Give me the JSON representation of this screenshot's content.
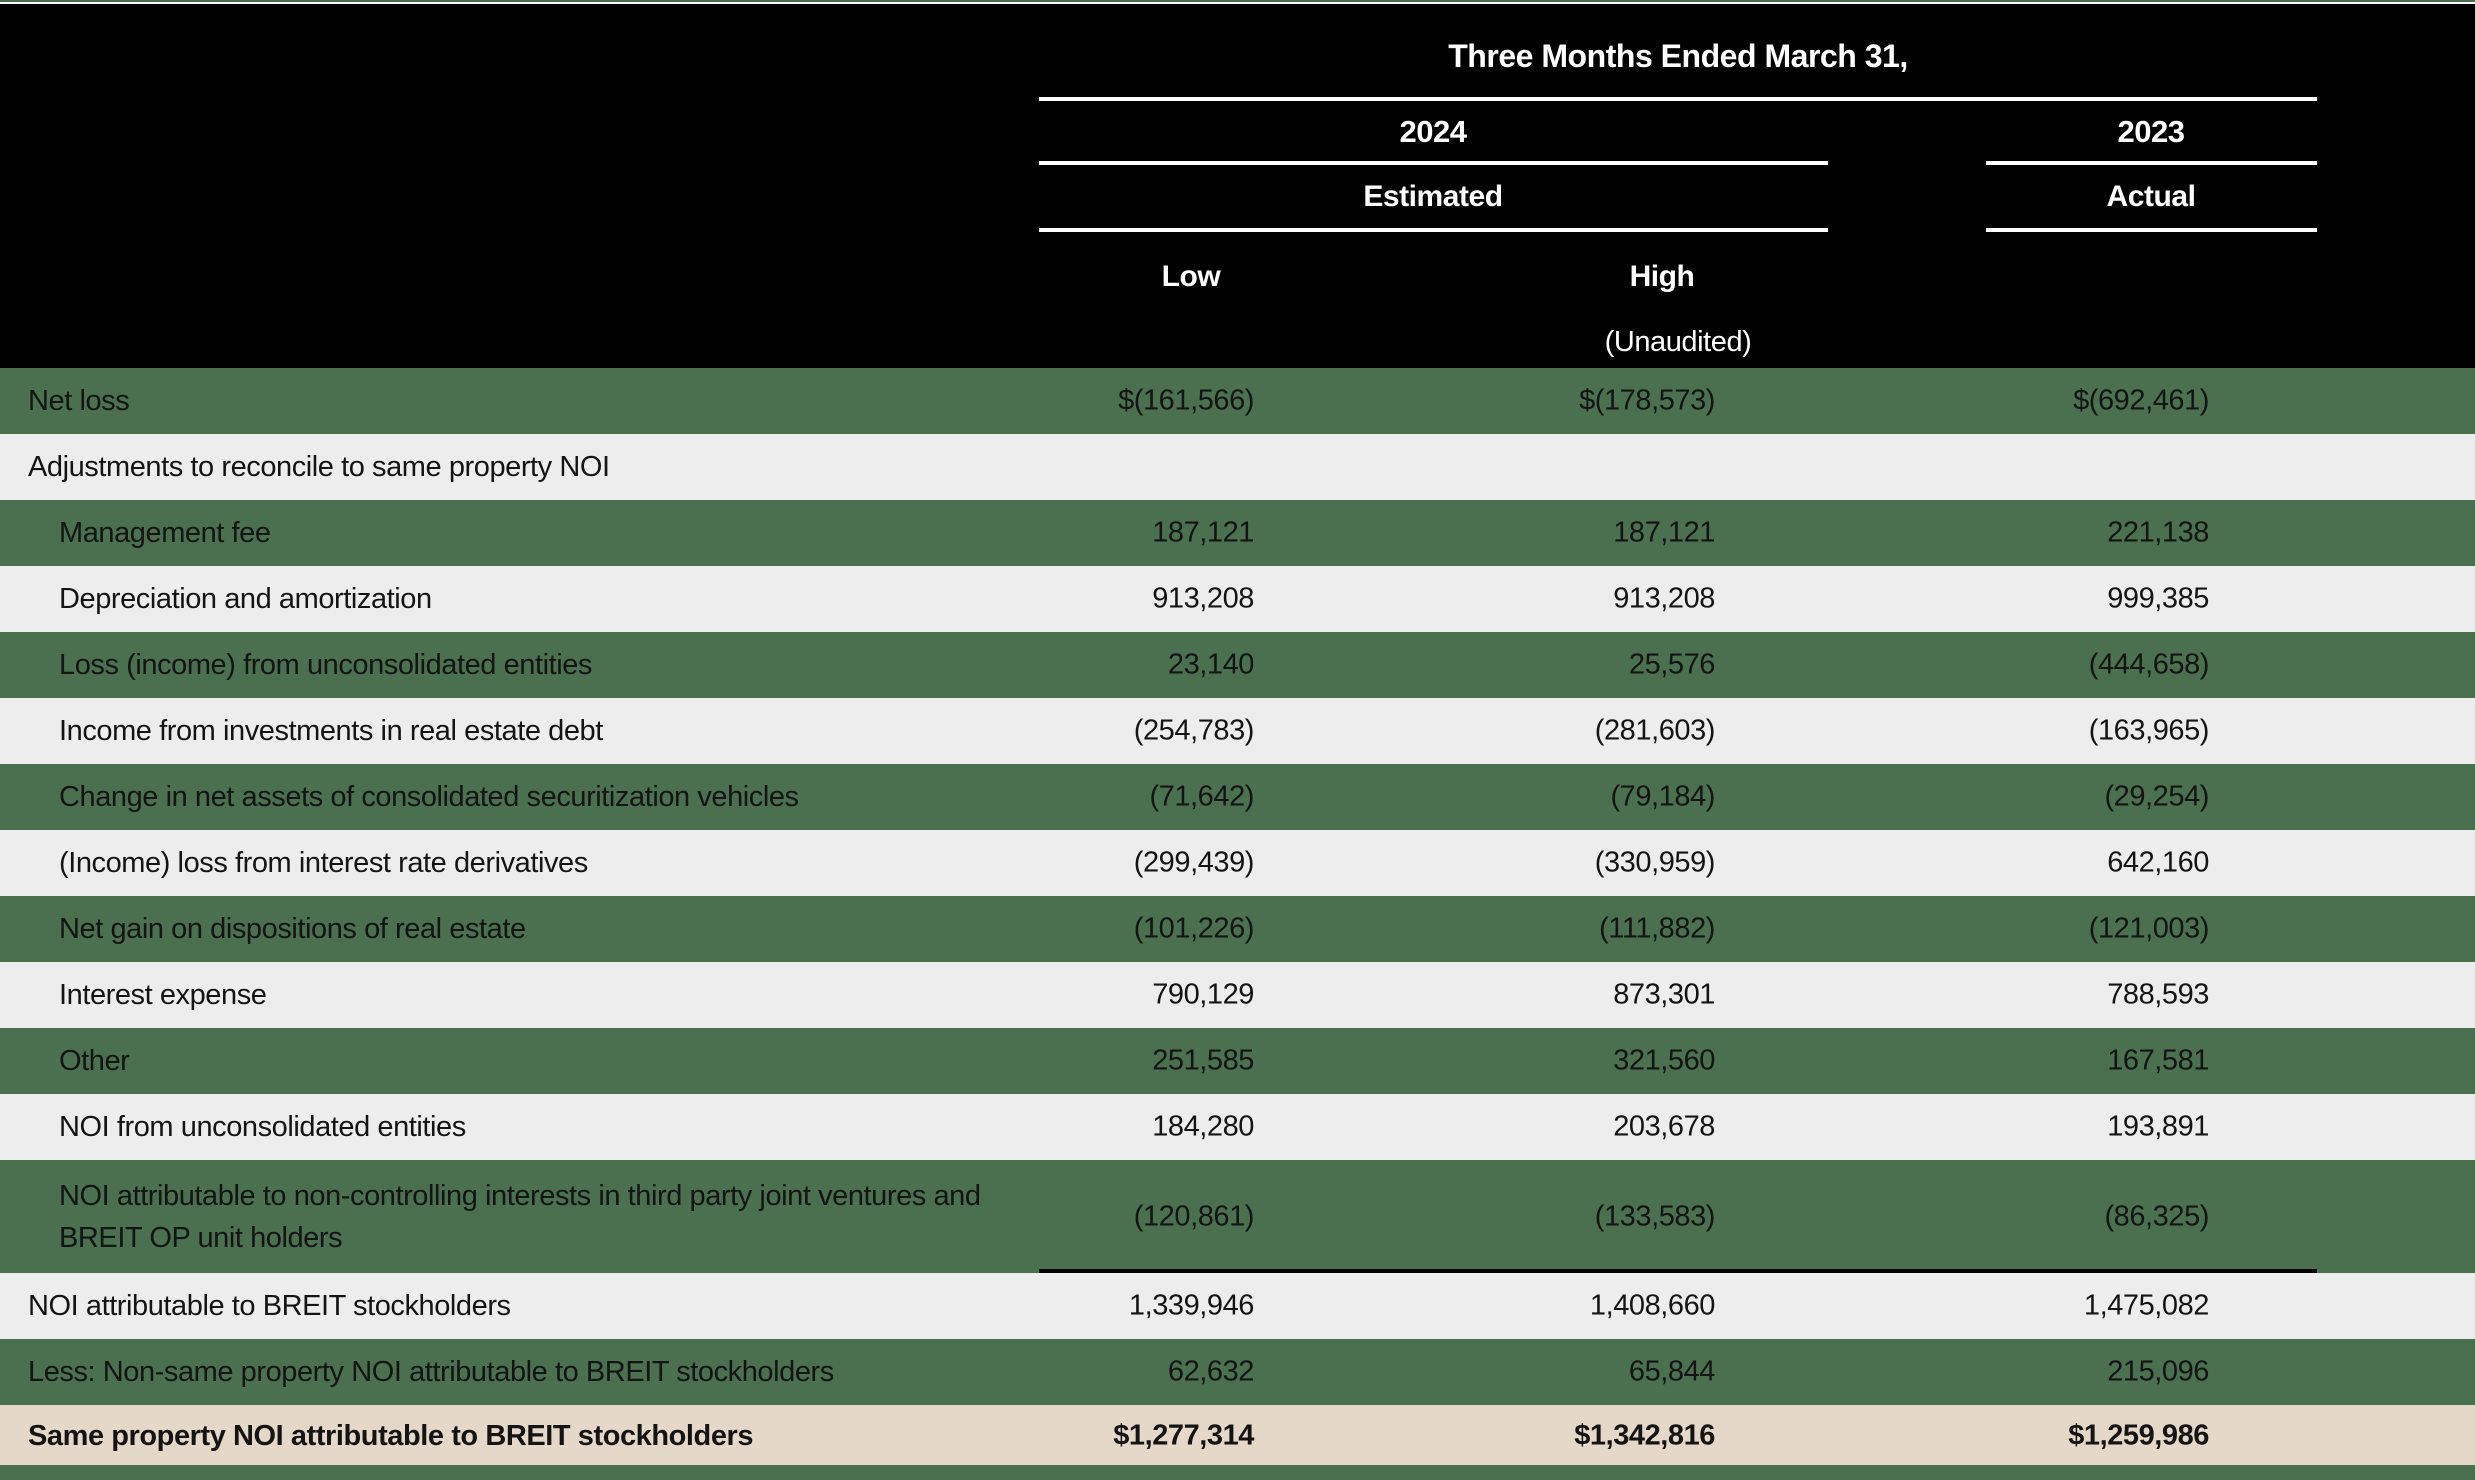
{
  "colors": {
    "green_row": "#4A7050",
    "light_row": "#EDEDED",
    "highlight_row": "#E6D8C8",
    "header_bg": "#000000",
    "accent_strip": "#4A7050"
  },
  "table": {
    "title": "Three Months Ended March 31,",
    "year_2024": "2024",
    "year_2023": "2023",
    "subheader_2024": "Estimated",
    "subheader_2023": "Actual",
    "col_low": "Low",
    "col_high": "High",
    "unaudited_note": "(Unaudited)",
    "rows": [
      {
        "label": "Net loss",
        "low": "$(161,566)",
        "high": "$(178,573)",
        "actual": "$(692,461)",
        "style": "green",
        "indent": 0
      },
      {
        "label": "Adjustments to reconcile to same property NOI",
        "low": "",
        "high": "",
        "actual": "",
        "style": "light",
        "indent": 0
      },
      {
        "label": "Management fee",
        "low": "187,121",
        "high": "187,121",
        "actual": "221,138",
        "style": "green",
        "indent": 1
      },
      {
        "label": "Depreciation and amortization",
        "low": "913,208",
        "high": "913,208",
        "actual": "999,385",
        "style": "light",
        "indent": 1
      },
      {
        "label": "Loss (income) from unconsolidated entities",
        "low": "23,140",
        "high": "25,576",
        "actual": "(444,658)",
        "style": "green",
        "indent": 1
      },
      {
        "label": "Income from investments in real estate debt",
        "low": "(254,783)",
        "high": "(281,603)",
        "actual": "(163,965)",
        "style": "light",
        "indent": 1
      },
      {
        "label": "Change in net assets of consolidated securitization vehicles",
        "low": "(71,642)",
        "high": "(79,184)",
        "actual": "(29,254)",
        "style": "green",
        "indent": 1
      },
      {
        "label": "(Income) loss from interest rate derivatives",
        "low": "(299,439)",
        "high": "(330,959)",
        "actual": "642,160",
        "style": "light",
        "indent": 1
      },
      {
        "label": "Net gain on dispositions of real estate",
        "low": "(101,226)",
        "high": "(111,882)",
        "actual": "(121,003)",
        "style": "green",
        "indent": 1
      },
      {
        "label": "Interest expense",
        "low": "790,129",
        "high": "873,301",
        "actual": "788,593",
        "style": "light",
        "indent": 1
      },
      {
        "label": "Other",
        "low": "251,585",
        "high": "321,560",
        "actual": "167,581",
        "style": "green",
        "indent": 1
      },
      {
        "label": "NOI from unconsolidated entities",
        "low": "184,280",
        "high": "203,678",
        "actual": "193,891",
        "style": "light",
        "indent": 1
      },
      {
        "label": "NOI attributable to non-controlling interests in third party joint ventures and BREIT OP unit holders",
        "low": "(120,861)",
        "high": "(133,583)",
        "actual": "(86,325)",
        "style": "green",
        "indent": 1,
        "tall": true,
        "rule_below": true
      },
      {
        "label": "NOI attributable to BREIT stockholders",
        "low": "1,339,946",
        "high": "1,408,660",
        "actual": "1,475,082",
        "style": "light",
        "indent": 0
      },
      {
        "label": "Less: Non-same property NOI attributable to BREIT stockholders",
        "low": "62,632",
        "high": "65,844",
        "actual": "215,096",
        "style": "green",
        "indent": 0
      },
      {
        "label": "Same property NOI attributable to BREIT stockholders",
        "low": "$1,277,314",
        "high": "$1,342,816",
        "actual": "$1,259,986",
        "style": "beige",
        "indent": 0,
        "bold": true
      }
    ]
  }
}
